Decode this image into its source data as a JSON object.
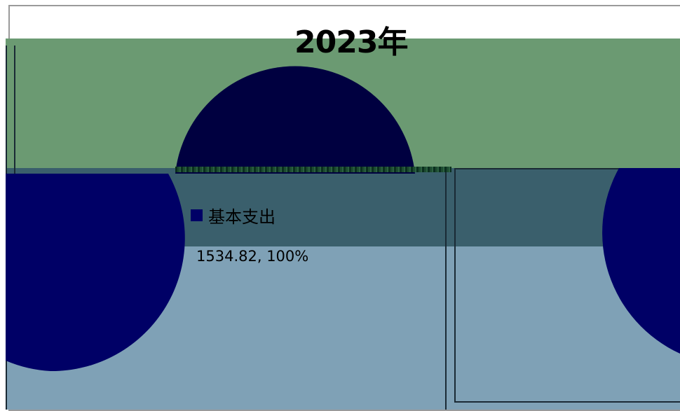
{
  "chart_data": {
    "type": "pie",
    "title": "2023年",
    "categories": [
      "基本支出"
    ],
    "values": [
      1534.82
    ],
    "percentages": [
      "100%"
    ],
    "data_labels": [
      "1534.82, 100%"
    ],
    "legend": {
      "entries": [
        "基本支出"
      ],
      "position": "center"
    },
    "colors": [
      "#000066"
    ]
  },
  "colors": {
    "band_top": "#6b9a72",
    "band_middle": "#3a5f6c",
    "band_bottom": "#7fa1b6",
    "pie_fill": "#000066"
  }
}
